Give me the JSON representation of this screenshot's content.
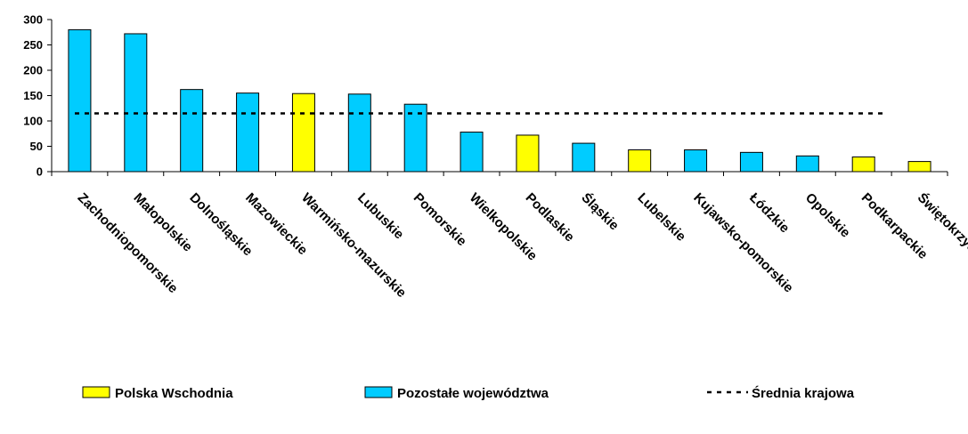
{
  "chart_data": {
    "type": "bar",
    "categories": [
      "Zachodniopomorskie",
      "Małopolskie",
      "Dolnośląskie",
      "Mazowieckie",
      "Warmińsko-mazurskie",
      "Lubuskie",
      "Pomorskie",
      "Wielkopolskie",
      "Podlaskie",
      "Śląskie",
      "Lubelskie",
      "Kujawsko-pomorskie",
      "Łódzkie",
      "Opolskie",
      "Podkarpackie",
      "Świętokrzyskie"
    ],
    "values": [
      280,
      272,
      162,
      155,
      154,
      153,
      133,
      78,
      72,
      56,
      43,
      43,
      38,
      31,
      29,
      20
    ],
    "groups": [
      "Pozostałe województwa",
      "Pozostałe województwa",
      "Pozostałe województwa",
      "Pozostałe województwa",
      "Polska Wschodnia",
      "Pozostałe województwa",
      "Pozostałe województwa",
      "Pozostałe województwa",
      "Polska Wschodnia",
      "Pozostałe województwa",
      "Polska Wschodnia",
      "Pozostałe województwa",
      "Pozostałe województwa",
      "Pozostałe województwa",
      "Polska Wschodnia",
      "Polska Wschodnia"
    ],
    "average": 115,
    "ylim": [
      0,
      300
    ],
    "yticks": [
      0,
      50,
      100,
      150,
      200,
      250,
      300
    ],
    "title": "",
    "xlabel": "",
    "ylabel": "",
    "grid": false,
    "legend_position": "bottom",
    "legend": [
      {
        "label": "Polska Wschodnia",
        "kind": "bar",
        "color": "#ffff00"
      },
      {
        "label": "Pozostałe województwa",
        "kind": "bar",
        "color": "#00ccff"
      },
      {
        "label": "Średnia krajowa",
        "kind": "dashed-line",
        "color": "#000000"
      }
    ],
    "colors": {
      "Polska Wschodnia": "#ffff00",
      "Pozostałe województwa": "#00ccff",
      "outline": "#000000"
    }
  }
}
